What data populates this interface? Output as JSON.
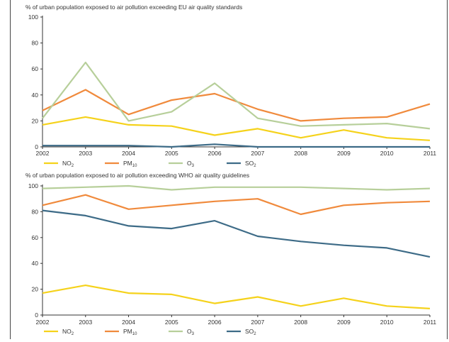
{
  "chart_data": [
    {
      "type": "line",
      "title": "% of urban population exposed to air pollution exceeding EU air quality standards",
      "categories": [
        "2002",
        "2003",
        "2004",
        "2005",
        "2006",
        "2007",
        "2008",
        "2009",
        "2010",
        "2011"
      ],
      "ylim": [
        0,
        100
      ],
      "yticks": [
        "0",
        "20",
        "40",
        "60",
        "80",
        "100"
      ],
      "grid": false,
      "legend_position": "bottom",
      "series": [
        {
          "name": "NO",
          "sub": "2",
          "color": "#f5d21b",
          "values": [
            17,
            23,
            17,
            16,
            9,
            14,
            7,
            13,
            7,
            5
          ]
        },
        {
          "name": "PM",
          "sub": "10",
          "color": "#f08a3c",
          "values": [
            28,
            44,
            25,
            36,
            41,
            29,
            20,
            22,
            23,
            33
          ]
        },
        {
          "name": "O",
          "sub": "3",
          "color": "#b7cf9a",
          "values": [
            22,
            65,
            20,
            27,
            49,
            22,
            16,
            17,
            18,
            14
          ]
        },
        {
          "name": "SO",
          "sub": "2",
          "color": "#3d6b87",
          "values": [
            1,
            1,
            1,
            0,
            2,
            0,
            0,
            0,
            0,
            0
          ]
        }
      ]
    },
    {
      "type": "line",
      "title": "% of urban population exposed to air pollution exceeding WHO air quality guidelines",
      "categories": [
        "2002",
        "2003",
        "2004",
        "2005",
        "2006",
        "2007",
        "2008",
        "2009",
        "2010",
        "2011"
      ],
      "ylim": [
        0,
        100
      ],
      "yticks": [
        "0",
        "20",
        "40",
        "60",
        "80",
        "100"
      ],
      "grid": false,
      "legend_position": "bottom",
      "series": [
        {
          "name": "NO",
          "sub": "2",
          "color": "#f5d21b",
          "values": [
            17,
            23,
            17,
            16,
            9,
            14,
            7,
            13,
            7,
            5
          ]
        },
        {
          "name": "PM",
          "sub": "10",
          "color": "#f08a3c",
          "values": [
            85,
            93,
            82,
            85,
            88,
            90,
            78,
            85,
            87,
            88
          ]
        },
        {
          "name": "O",
          "sub": "3",
          "color": "#b7cf9a",
          "values": [
            98,
            99,
            100,
            97,
            99,
            99,
            99,
            98,
            97,
            98
          ]
        },
        {
          "name": "SO",
          "sub": "2",
          "color": "#3d6b87",
          "values": [
            81,
            77,
            69,
            67,
            73,
            61,
            57,
            54,
            52,
            45
          ]
        }
      ]
    }
  ]
}
